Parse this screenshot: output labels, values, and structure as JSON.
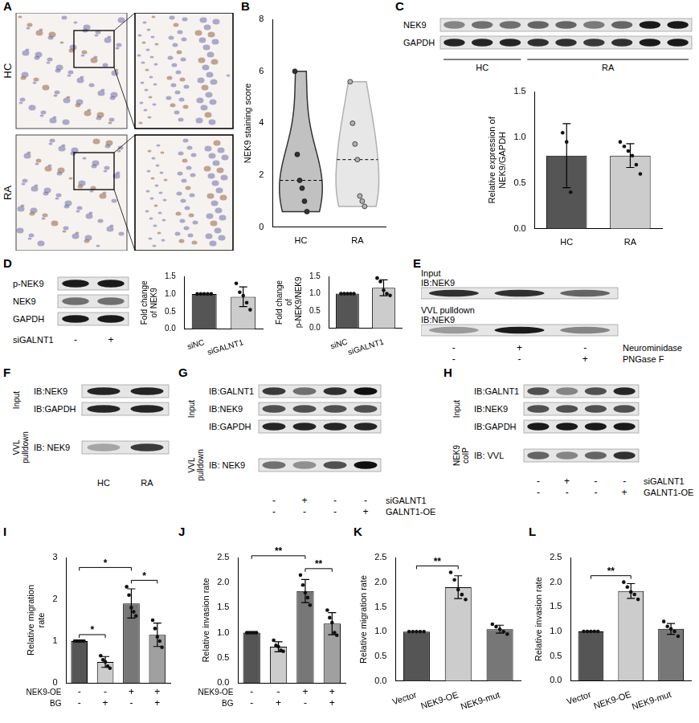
{
  "micrograph": {
    "panel": "A",
    "rows": [
      "HC",
      "RA"
    ]
  },
  "chart_data": [
    {
      "panel": "B",
      "type": "violin",
      "categories": [
        "HC",
        "RA"
      ],
      "values": [
        [
          6,
          2.8,
          1.8,
          1.5,
          1,
          0.6
        ],
        [
          5.6,
          4,
          3.2,
          2.6,
          1.2,
          1,
          0.8
        ]
      ],
      "medians": [
        1.8,
        2.6
      ],
      "colors": [
        "#333333",
        "#b0b0b0"
      ],
      "y_label": "NEK9 staining score",
      "ylim": [
        0,
        8
      ],
      "yticks": [
        0,
        2,
        4,
        6,
        8
      ],
      "grid": false
    },
    {
      "type": "bar",
      "categories": [
        "HC",
        "RA"
      ],
      "values": [
        0.8,
        0.8
      ],
      "errors": [
        0.35,
        0.13
      ],
      "points": [
        [
          1.05,
          0.95,
          0.4
        ],
        [
          0.95,
          0.9,
          0.85,
          0.8,
          0.7,
          0.6
        ]
      ],
      "colors": [
        "#555555",
        "#cccccc"
      ],
      "y_label": "Relative expression of NEK9/GAPDH",
      "ylim": [
        0,
        1.5
      ],
      "yticks": [
        {
          "value": 0,
          "label": "0.0"
        },
        0.5,
        {
          "value": 1,
          "label": "1.0"
        },
        1.5
      ],
      "grid": false
    },
    {
      "type": "bar",
      "categories": [
        "siNC",
        "siGALNT1"
      ],
      "values": [
        1,
        0.92
      ],
      "errors": [
        0,
        0.28
      ],
      "points": [
        [
          1,
          1,
          1,
          1,
          1
        ],
        [
          1.3,
          1.05,
          0.95,
          0.75,
          0.55
        ]
      ],
      "colors": [
        "#555555",
        "#cccccc"
      ],
      "y_label": "Fold change of NEK9",
      "ylim": [
        0,
        1.5
      ],
      "yticks": [
        {
          "value": 0,
          "label": "0.0"
        },
        0.5,
        {
          "value": 1,
          "label": "1.0"
        },
        1.5
      ],
      "grid": false
    },
    {
      "type": "bar",
      "categories": [
        "siNC",
        "siGALNT1"
      ],
      "values": [
        1,
        1.17
      ],
      "errors": [
        0,
        0.23
      ],
      "points": [
        [
          1,
          1,
          1,
          1,
          1
        ],
        [
          1.45,
          1.35,
          1.1,
          1,
          0.95
        ]
      ],
      "colors": [
        "#555555",
        "#cccccc"
      ],
      "y_label": "Fold change of p-NEK9/NEK9",
      "ylim": [
        0,
        1.5
      ],
      "yticks": [
        {
          "value": 0,
          "label": "0.0"
        },
        0.5,
        {
          "value": 1,
          "label": "1.0"
        },
        1.5
      ],
      "grid": false
    },
    {
      "panel": "I",
      "type": "bar",
      "categories": [
        null,
        null,
        null,
        null
      ],
      "conditions": [
        {
          "label": "NEK9-OE",
          "marks": [
            "-",
            "-",
            "+",
            "+"
          ]
        },
        {
          "label": "BG",
          "marks": [
            "-",
            "+",
            "-",
            "+"
          ]
        }
      ],
      "values": [
        1,
        0.5,
        1.9,
        1.15
      ],
      "errors": [
        0,
        0.13,
        0.35,
        0.28
      ],
      "points": [
        [
          1,
          1,
          1,
          1,
          1
        ],
        [
          0.65,
          0.55,
          0.5,
          0.4,
          0.35
        ],
        [
          2.3,
          2.1,
          1.8,
          1.7,
          1.6
        ],
        [
          1.5,
          1.3,
          1.1,
          1,
          0.85
        ]
      ],
      "colors": [
        "#555555",
        "#cccccc",
        "#777777",
        "#a0a0a0"
      ],
      "y_label": "Relative migration rate",
      "ylim": [
        0,
        3
      ],
      "yticks": [
        0,
        1,
        2,
        3
      ],
      "grid": false,
      "significance": [
        {
          "from": 0,
          "to": 1,
          "label": "*"
        },
        {
          "from": 0,
          "to": 2,
          "label": "*"
        },
        {
          "from": 2,
          "to": 3,
          "label": "*"
        }
      ]
    },
    {
      "panel": "J",
      "type": "bar",
      "categories": [
        null,
        null,
        null,
        null
      ],
      "conditions": [
        {
          "label": "NEK9-OE",
          "marks": [
            "-",
            "-",
            "+",
            "+"
          ]
        },
        {
          "label": "BG",
          "marks": [
            "-",
            "+",
            "-",
            "+"
          ]
        }
      ],
      "values": [
        1,
        0.72,
        1.83,
        1.18
      ],
      "errors": [
        0,
        0.1,
        0.23,
        0.22
      ],
      "points": [
        [
          1,
          1,
          1,
          1,
          1
        ],
        [
          0.85,
          0.75,
          0.72,
          0.65,
          0.63
        ],
        [
          2.15,
          1.95,
          1.8,
          1.7,
          1.55
        ],
        [
          1.45,
          1.3,
          1.2,
          1,
          0.95
        ]
      ],
      "colors": [
        "#555555",
        "#cccccc",
        "#777777",
        "#a0a0a0"
      ],
      "y_label": "Relative invasion rate",
      "ylim": [
        0,
        2.5
      ],
      "yticks": [
        {
          "value": 0,
          "label": "0.0"
        },
        0.5,
        {
          "value": 1,
          "label": "1.0"
        },
        1.5,
        {
          "value": 2,
          "label": "2.0"
        },
        2.5
      ],
      "grid": false,
      "significance": [
        {
          "from": 0,
          "to": 2,
          "label": "**"
        },
        {
          "from": 2,
          "to": 3,
          "label": "**"
        }
      ]
    },
    {
      "panel": "K",
      "type": "bar",
      "categories": [
        "Vector",
        "NEK9-OE",
        "NEK9-mut"
      ],
      "values": [
        1,
        1.9,
        1.05
      ],
      "errors": [
        0,
        0.23,
        0.08
      ],
      "points": [
        [
          1,
          1,
          1,
          1,
          1
        ],
        [
          2.2,
          2.05,
          1.85,
          1.75,
          1.65
        ],
        [
          1.15,
          1.1,
          1.05,
          1,
          0.95
        ]
      ],
      "colors": [
        "#555555",
        "#cccccc",
        "#777777"
      ],
      "y_label": "Relative migration rate",
      "ylim": [
        0,
        2.5
      ],
      "yticks": [
        {
          "value": 0,
          "label": "0.0"
        },
        0.5,
        {
          "value": 1,
          "label": "1.0"
        },
        1.5,
        {
          "value": 2,
          "label": "2.0"
        },
        2.5
      ],
      "grid": false,
      "significance": [
        {
          "from": 0,
          "to": 1,
          "label": "**"
        }
      ]
    },
    {
      "panel": "L",
      "type": "bar",
      "categories": [
        "Vector",
        "NEK9-OE",
        "NEK9-mut"
      ],
      "values": [
        1,
        1.82,
        1.05
      ],
      "errors": [
        0,
        0.15,
        0.11
      ],
      "points": [
        [
          1,
          1,
          1,
          1,
          1
        ],
        [
          2,
          1.9,
          1.8,
          1.75,
          1.65
        ],
        [
          1.2,
          1.1,
          1.05,
          1,
          0.9
        ]
      ],
      "colors": [
        "#555555",
        "#cccccc",
        "#777777"
      ],
      "y_label": "Relative invasion rate",
      "ylim": [
        0,
        2.5
      ],
      "yticks": [
        {
          "value": 0,
          "label": "0.0"
        },
        0.5,
        {
          "value": 1,
          "label": "1.0"
        },
        1.5,
        {
          "value": 2,
          "label": "2.0"
        },
        2.5
      ],
      "grid": false,
      "significance": [
        {
          "from": 0,
          "to": 1,
          "label": "**"
        }
      ]
    }
  ],
  "blots": [
    {
      "panel": "C",
      "groups": [
        {
          "rows": [
            {
              "label": "NEK9",
              "bands": [
                0.45,
                0.55,
                0.55,
                0.6,
                0.6,
                0.5,
                0.6,
                0.95,
                0.95
              ]
            },
            {
              "label": "GAPDH",
              "bands": [
                0.9,
                0.9,
                0.9,
                0.85,
                0.85,
                0.8,
                0.85,
                0.95,
                0.95
              ]
            }
          ]
        }
      ],
      "lane_groups": [
        {
          "label": "HC",
          "count": 3
        },
        {
          "label": "RA",
          "count": 6
        }
      ]
    },
    {
      "panel": "D",
      "groups": [
        {
          "rows": [
            {
              "label": "p-NEK9",
              "bands": [
                0.95,
                0.95
              ]
            },
            {
              "label": "NEK9",
              "bands": [
                0.55,
                0.55
              ]
            },
            {
              "label": "GAPDH",
              "bands": [
                0.95,
                0.95
              ]
            }
          ]
        }
      ],
      "conditions": [
        {
          "label": "siGALNT1",
          "marks": [
            "-",
            "+"
          ]
        }
      ]
    },
    {
      "panel": "E",
      "groups": [
        {
          "label": "Input",
          "rows": [
            {
              "label": "IB:NEK9",
              "bands": [
                0.85,
                0.85,
                0.6
              ]
            }
          ]
        },
        {
          "label": "VVL pulldown",
          "rows": [
            {
              "label": "IB:NEK9",
              "bands": [
                0.35,
                0.95,
                0.45
              ]
            }
          ]
        }
      ],
      "conditions": [
        {
          "label": "Neurominidase",
          "marks": [
            "-",
            "+",
            "-"
          ]
        },
        {
          "label": "PNGase F",
          "marks": [
            "-",
            "-",
            "+"
          ]
        }
      ]
    },
    {
      "panel": "F",
      "groups": [
        {
          "label": "Input",
          "rows": [
            {
              "label": "IB:NEK9",
              "bands": [
                0.9,
                0.9
              ]
            },
            {
              "label": "IB:GAPDH",
              "bands": [
                0.9,
                0.9
              ]
            }
          ]
        },
        {
          "label": "VVL pulldown",
          "rows": [
            {
              "label": "IB: NEK9",
              "bands": [
                0.3,
                0.8
              ]
            }
          ]
        }
      ],
      "lanes": [
        "HC",
        "RA"
      ]
    },
    {
      "panel": "G",
      "groups": [
        {
          "label": "Input",
          "rows": [
            {
              "label": "IB:GALNT1",
              "bands": [
                0.8,
                0.55,
                0.85,
                1
              ]
            },
            {
              "label": "IB:NEK9",
              "bands": [
                0.7,
                0.7,
                0.7,
                0.7
              ]
            },
            {
              "label": "IB:GAPDH",
              "bands": [
                0.9,
                0.9,
                0.9,
                0.9
              ]
            }
          ]
        },
        {
          "label": "VVL pulldown",
          "rows": [
            {
              "label": "IB: NEK9",
              "bands": [
                0.55,
                0.4,
                0.7,
                1
              ]
            }
          ]
        }
      ],
      "conditions": [
        {
          "label": "siGALNT1",
          "marks": [
            "-",
            "+",
            "-",
            "-"
          ]
        },
        {
          "label": "GALNT1-OE",
          "marks": [
            "-",
            "-",
            "-",
            "+"
          ]
        }
      ]
    },
    {
      "panel": "H",
      "groups": [
        {
          "label": "Input",
          "rows": [
            {
              "label": "IB:GALNT1",
              "bands": [
                0.7,
                0.45,
                0.7,
                0.9
              ]
            },
            {
              "label": "IB:NEK9",
              "bands": [
                0.7,
                0.7,
                0.7,
                0.7
              ]
            },
            {
              "label": "IB:GAPDH",
              "bands": [
                0.95,
                0.95,
                0.95,
                0.95
              ]
            }
          ]
        },
        {
          "label": "NEK9 coIP",
          "rows": [
            {
              "label": "IB: VVL",
              "bands": [
                0.6,
                0.45,
                0.6,
                0.85
              ]
            }
          ]
        }
      ],
      "conditions": [
        {
          "label": "siGALNT1",
          "marks": [
            "-",
            "+",
            "-",
            "-"
          ]
        },
        {
          "label": "GALNT1-OE",
          "marks": [
            "-",
            "-",
            "-",
            "+"
          ]
        }
      ]
    }
  ]
}
